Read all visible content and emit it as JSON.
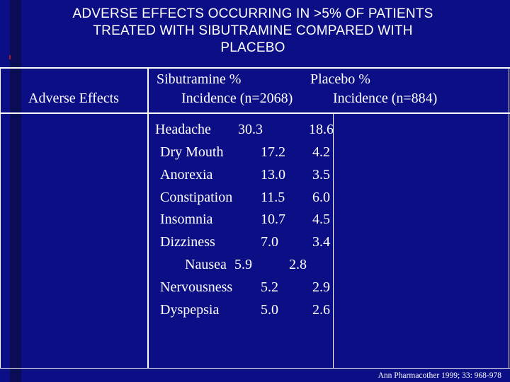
{
  "slide": {
    "title_lines": [
      "ADVERSE EFFECTS OCCURRING IN >5% OF PATIENTS",
      "TREATED WITH SIBUTRAMINE COMPARED WITH",
      "PLACEBO"
    ],
    "table": {
      "col_header_left": "Adverse Effects",
      "col_header_sibutramine_line1": "Sibutramine %",
      "col_header_sibutramine_line2": "Incidence (n=2068)",
      "col_header_placebo_line1": "Placebo %",
      "col_header_placebo_line2": "Incidence (n=884)",
      "rows": [
        {
          "effect": "Headache",
          "sibutramine": "30.3",
          "placebo": "18.6"
        },
        {
          "effect": "Dry Mouth",
          "sibutramine": "17.2",
          "placebo": "4.2"
        },
        {
          "effect": "Anorexia",
          "sibutramine": "13.0",
          "placebo": "3.5"
        },
        {
          "effect": "Constipation",
          "sibutramine": "11.5",
          "placebo": "6.0"
        },
        {
          "effect": "Insomnia",
          "sibutramine": "10.7",
          "placebo": "4.5"
        },
        {
          "effect": "Dizziness",
          "sibutramine": "7.0",
          "placebo": "3.4"
        },
        {
          "effect": "Nausea",
          "sibutramine": "5.9",
          "placebo": "2.8"
        },
        {
          "effect": "Nervousness",
          "sibutramine": "5.2",
          "placebo": "2.9"
        },
        {
          "effect": "Dyspepsia",
          "sibutramine": "5.0",
          "placebo": "2.6"
        }
      ]
    },
    "citation": "Ann Pharmacother 1999; 33: 968-978"
  }
}
